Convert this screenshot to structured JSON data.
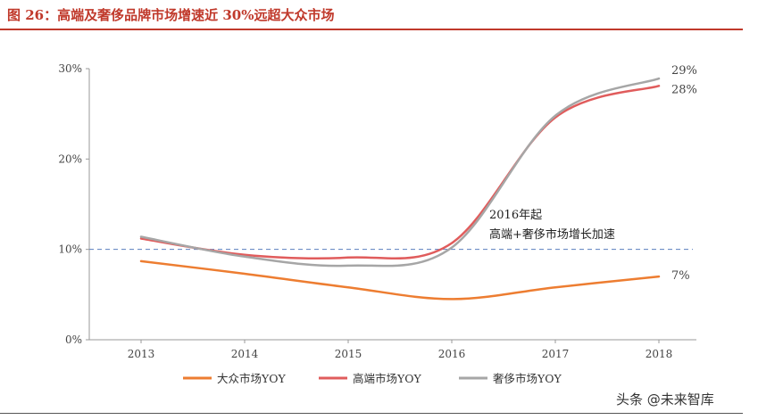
{
  "figure_title": "图 26：高端及奢侈品牌市场增速近 30%远超大众市场",
  "watermark": "头条 @未来智库",
  "chart_data": {
    "type": "line",
    "title": "图 26：高端及奢侈品牌市场增速近 30%远超大众市场",
    "xlabel": "",
    "ylabel": "",
    "categories": [
      "2013",
      "2014",
      "2015",
      "2016",
      "2017",
      "2018"
    ],
    "y_ticks": [
      "0%",
      "10%",
      "20%",
      "30%"
    ],
    "ylim": [
      0,
      30
    ],
    "reference_line": 10,
    "series": [
      {
        "name": "大众市场YOY",
        "color": "#ed7d31",
        "values": [
          8.7,
          7.3,
          5.8,
          4.5,
          5.8,
          7.0
        ],
        "end_label": "7%"
      },
      {
        "name": "高端市场YOY",
        "color": "#e05c5c",
        "values": [
          11.2,
          9.4,
          9.1,
          10.7,
          24.6,
          28.1
        ],
        "end_label": "28%"
      },
      {
        "name": "奢侈市场YOY",
        "color": "#a6a6a6",
        "values": [
          11.4,
          9.2,
          8.2,
          10.2,
          24.8,
          28.9
        ],
        "end_label": "29%"
      }
    ],
    "annotation": {
      "line1": "2016年起",
      "line2": "高端+奢侈市场增长加速"
    },
    "legend_position": "bottom"
  }
}
